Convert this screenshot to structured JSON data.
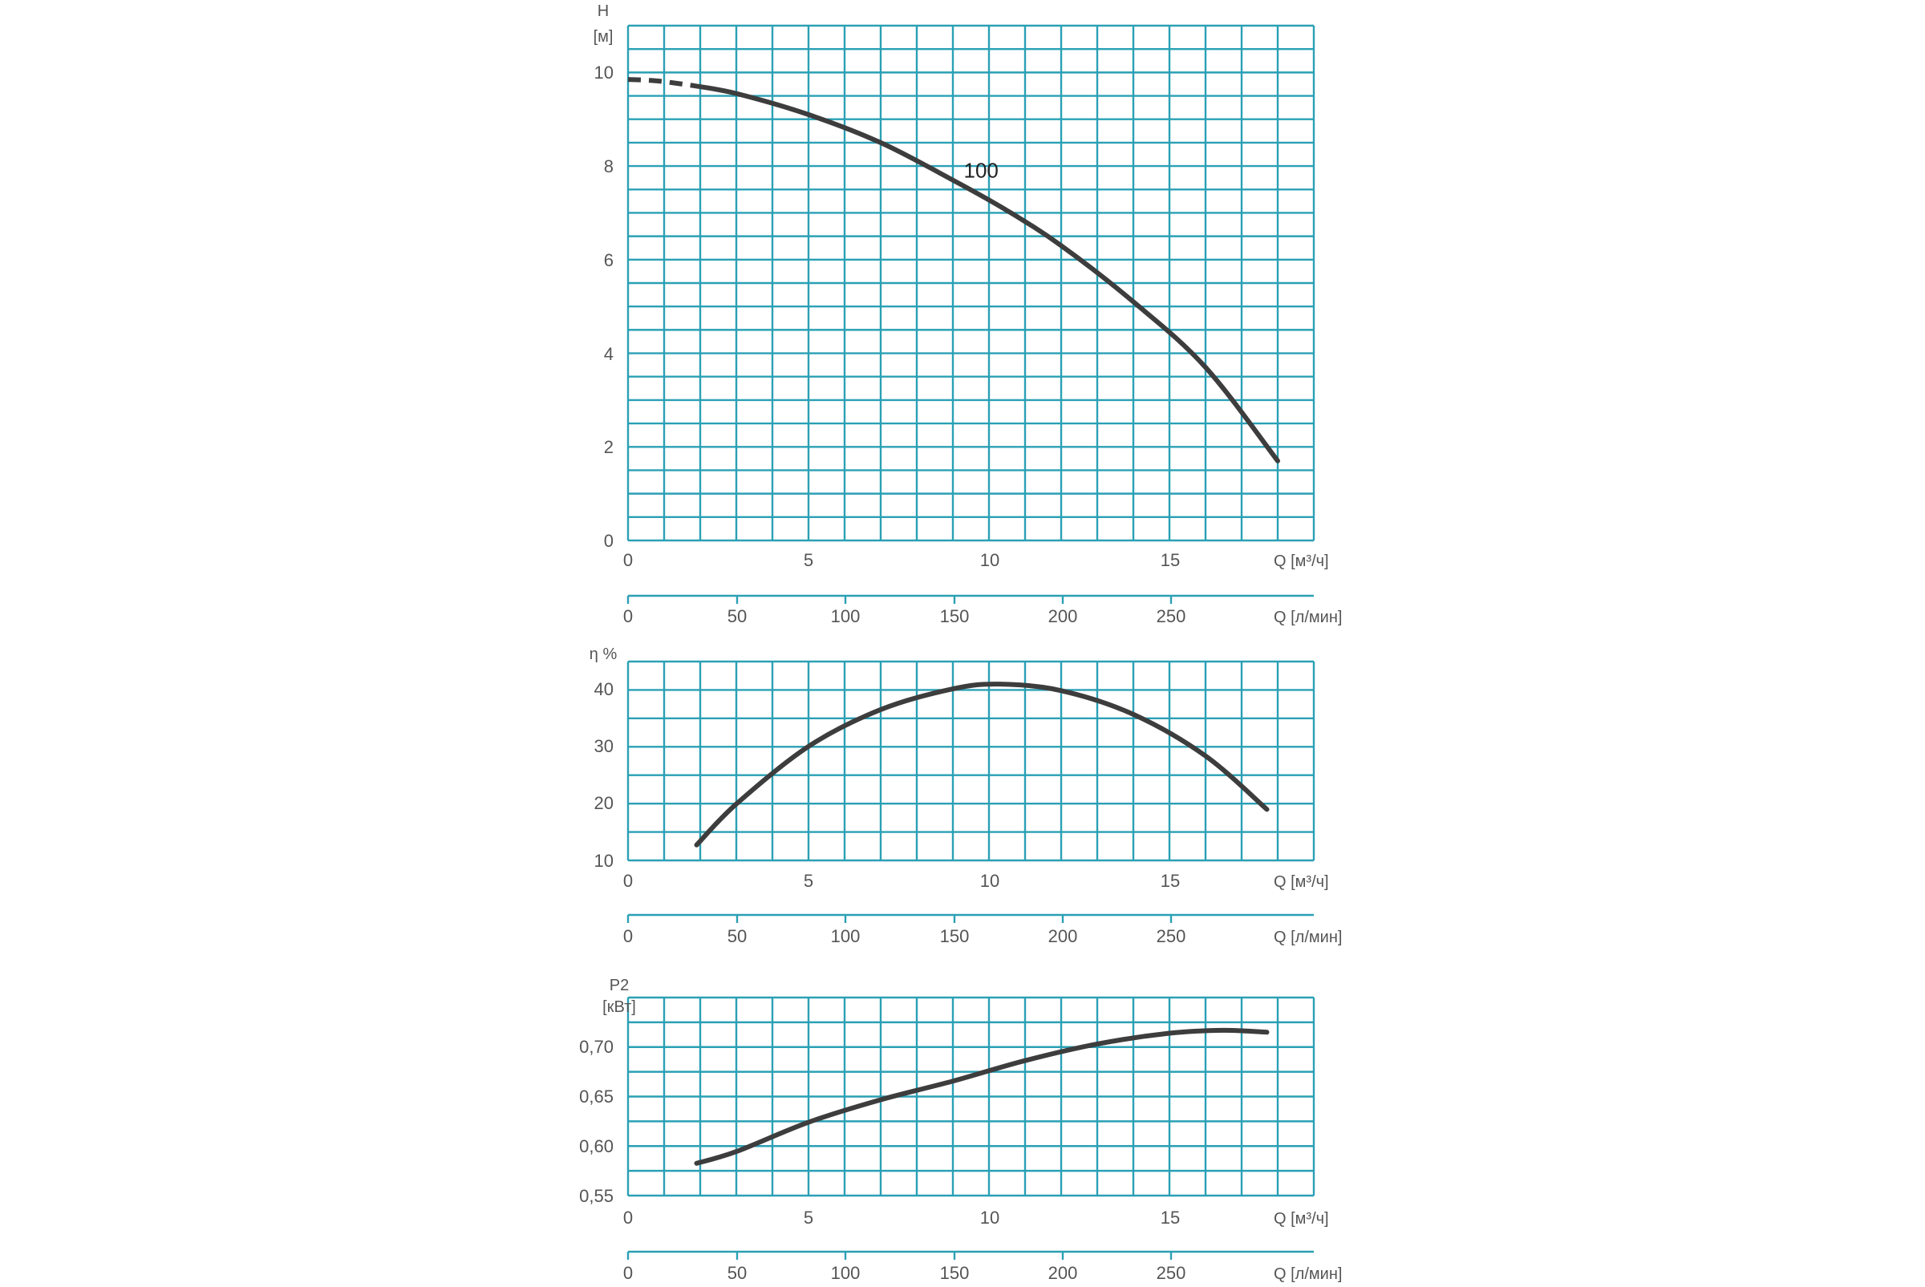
{
  "colors": {
    "grid": "#2aa0b5",
    "curve": "#3d3d3d",
    "text": "#555555"
  },
  "chart_data": [
    {
      "type": "line",
      "ylabel_top": "H",
      "ylabel_unit": "[м]",
      "xlabel_primary": "Q [м³/ч]",
      "xlabel_secondary": "Q [л/мин]",
      "ylim": [
        0,
        11
      ],
      "xlim": [
        0,
        19
      ],
      "yticks": [
        "0",
        "2",
        "4",
        "6",
        "8",
        "10"
      ],
      "xticks_primary": [
        "0",
        "5",
        "10",
        "15"
      ],
      "xticks_secondary": [
        "0",
        "50",
        "100",
        "150",
        "200",
        "250"
      ],
      "grid": true,
      "annotation": "100",
      "series": [
        {
          "dashed_x": [
            0,
            0.8,
            1.8
          ],
          "dashed_y": [
            9.85,
            9.82,
            9.72
          ],
          "x": [
            1.8,
            3,
            5,
            7,
            9,
            10.5,
            12,
            14,
            16,
            18
          ],
          "y": [
            9.72,
            9.55,
            9.1,
            8.5,
            7.7,
            7.05,
            6.3,
            5.1,
            3.7,
            1.7
          ]
        }
      ]
    },
    {
      "type": "line",
      "ylabel_top": "η %",
      "ylabel_unit": "",
      "xlabel_primary": "Q [м³/ч]",
      "xlabel_secondary": "Q [л/мин]",
      "ylim": [
        10,
        43.5
      ],
      "xlim": [
        0,
        19
      ],
      "yticks": [
        "10",
        "20",
        "30",
        "40"
      ],
      "xticks_primary": [
        "0",
        "5",
        "10",
        "15"
      ],
      "xticks_secondary": [
        "0",
        "50",
        "100",
        "150",
        "200",
        "250"
      ],
      "grid": true,
      "series": [
        {
          "x": [
            1.9,
            3,
            5,
            7,
            9,
            10.3,
            12,
            14,
            16,
            17.7
          ],
          "y": [
            12.6,
            19.5,
            29.2,
            35.4,
            38.9,
            39.7,
            38.6,
            34.6,
            27.6,
            18.6
          ]
        }
      ]
    },
    {
      "type": "line",
      "ylabel_top": "P2",
      "ylabel_unit": "[кВт]",
      "xlabel_primary": "Q [м³/ч]",
      "xlabel_secondary": "Q [л/мин]",
      "ylim": [
        0.55,
        0.7525
      ],
      "xlim": [
        0,
        19
      ],
      "yticks": [
        "0,55",
        "0,60",
        "0,65",
        "0,70"
      ],
      "xticks_primary": [
        "0",
        "5",
        "10",
        "15"
      ],
      "xticks_secondary": [
        "0",
        "50",
        "100",
        "150",
        "200",
        "250"
      ],
      "grid": true,
      "series": [
        {
          "x": [
            1.9,
            3,
            5,
            7,
            9,
            11,
            13,
            15,
            16.5,
            17.7
          ],
          "y": [
            0.583,
            0.595,
            0.625,
            0.648,
            0.667,
            0.688,
            0.705,
            0.716,
            0.719,
            0.717
          ]
        }
      ]
    }
  ]
}
